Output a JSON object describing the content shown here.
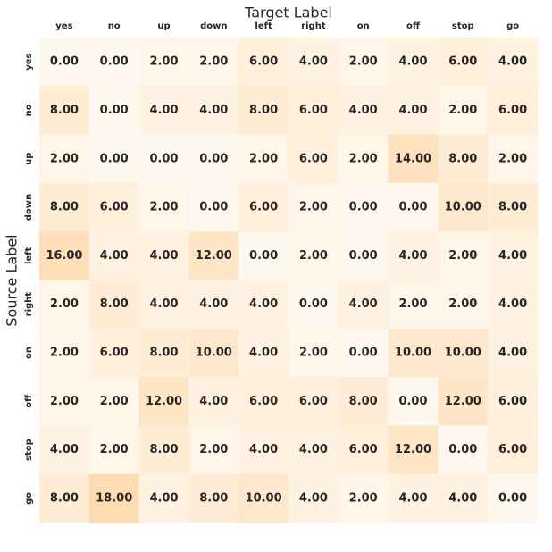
{
  "chart_data": {
    "type": "heatmap",
    "xlabel": "Target Label",
    "ylabel": "Source Label",
    "x_categories": [
      "yes",
      "no",
      "up",
      "down",
      "left",
      "right",
      "on",
      "off",
      "stop",
      "go"
    ],
    "y_categories": [
      "yes",
      "no",
      "up",
      "down",
      "left",
      "right",
      "on",
      "off",
      "stop",
      "go"
    ],
    "values": [
      [
        0,
        0,
        2,
        2,
        6,
        4,
        2,
        4,
        6,
        4
      ],
      [
        8,
        0,
        4,
        4,
        8,
        6,
        4,
        4,
        2,
        6
      ],
      [
        2,
        0,
        0,
        0,
        2,
        6,
        2,
        14,
        8,
        2
      ],
      [
        8,
        6,
        2,
        0,
        6,
        2,
        0,
        0,
        10,
        8
      ],
      [
        16,
        4,
        4,
        12,
        0,
        2,
        0,
        4,
        2,
        4
      ],
      [
        2,
        8,
        4,
        4,
        4,
        0,
        4,
        2,
        2,
        4
      ],
      [
        2,
        6,
        8,
        10,
        4,
        2,
        0,
        10,
        10,
        4
      ],
      [
        2,
        2,
        12,
        4,
        6,
        6,
        8,
        0,
        12,
        6
      ],
      [
        4,
        2,
        8,
        2,
        4,
        4,
        6,
        12,
        0,
        6
      ],
      [
        8,
        18,
        4,
        8,
        10,
        4,
        2,
        4,
        4,
        0
      ]
    ],
    "value_labels": [
      [
        "0.00",
        "0.00",
        "2.00",
        "2.00",
        "6.00",
        "4.00",
        "2.00",
        "4.00",
        "6.00",
        "4.00"
      ],
      [
        "8.00",
        "0.00",
        "4.00",
        "4.00",
        "8.00",
        "6.00",
        "4.00",
        "4.00",
        "2.00",
        "6.00"
      ],
      [
        "2.00",
        "0.00",
        "0.00",
        "0.00",
        "2.00",
        "6.00",
        "2.00",
        "14.00",
        "8.00",
        "2.00"
      ],
      [
        "8.00",
        "6.00",
        "2.00",
        "0.00",
        "6.00",
        "2.00",
        "0.00",
        "0.00",
        "10.00",
        "8.00"
      ],
      [
        "16.00",
        "4.00",
        "4.00",
        "12.00",
        "0.00",
        "2.00",
        "0.00",
        "4.00",
        "2.00",
        "4.00"
      ],
      [
        "2.00",
        "8.00",
        "4.00",
        "4.00",
        "4.00",
        "0.00",
        "4.00",
        "2.00",
        "2.00",
        "4.00"
      ],
      [
        "2.00",
        "6.00",
        "8.00",
        "10.00",
        "4.00",
        "2.00",
        "0.00",
        "10.00",
        "10.00",
        "4.00"
      ],
      [
        "2.00",
        "2.00",
        "12.00",
        "4.00",
        "6.00",
        "6.00",
        "8.00",
        "0.00",
        "12.00",
        "6.00"
      ],
      [
        "4.00",
        "2.00",
        "8.00",
        "2.00",
        "4.00",
        "4.00",
        "6.00",
        "12.00",
        "0.00",
        "6.00"
      ],
      [
        "8.00",
        "18.00",
        "4.00",
        "8.00",
        "10.00",
        "4.00",
        "2.00",
        "4.00",
        "4.00",
        "0.00"
      ]
    ],
    "colors": [
      "#fff8ef",
      "#fedcb2"
    ]
  }
}
